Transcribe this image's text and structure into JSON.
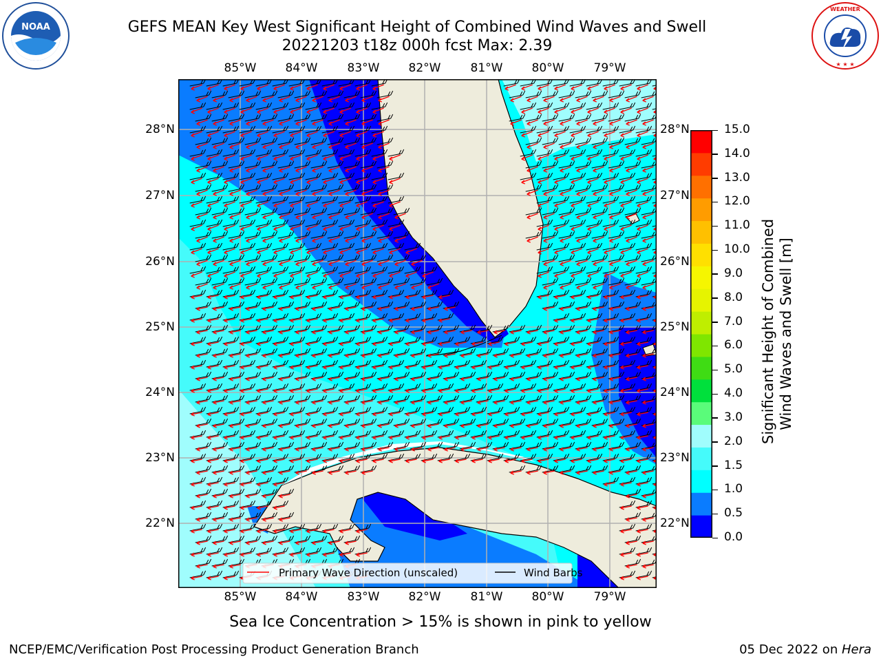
{
  "header": {
    "title_line1": "GEFS MEAN Key West Significant Height of Combined Wind Waves and Swell",
    "title_line2": "20221203 t18z 000h fcst   Max: 2.39"
  },
  "logos": {
    "left": "NOAA",
    "right": "NATIONAL WEATHER SERVICE"
  },
  "map": {
    "lon_labels": [
      "85°W",
      "84°W",
      "83°W",
      "82°W",
      "81°W",
      "80°W",
      "79°W"
    ],
    "lat_labels": [
      "28°N",
      "27°N",
      "26°N",
      "25°N",
      "24°N",
      "23°N",
      "22°N"
    ],
    "legend": {
      "wave": "Primary Wave Direction (unscaled)",
      "barb": "Wind Barbs",
      "wave_color": "#ff0000",
      "barb_color": "#000000"
    },
    "land_color": "#eeecdc",
    "ocean_bands": {
      "0.0-0.5": "#0000ff",
      "0.5-1.0": "#0a7cff",
      "1.0-1.5": "#00ffff",
      "1.5-2.0": "#45fbfb",
      "2.0-2.5": "#a0fdfd"
    }
  },
  "colorbar": {
    "label": "Significant Height of Combined\nWind Waves and Swell [m]",
    "label_line1": "Significant Height of Combined",
    "label_line2": "Wind Waves and Swell [m]",
    "ticks": [
      "15.0",
      "14.0",
      "13.0",
      "12.0",
      "11.0",
      "10.0",
      "9.0",
      "8.0",
      "7.0",
      "6.0",
      "5.0",
      "4.0",
      "3.0",
      "2.0",
      "1.5",
      "1.0",
      "0.5",
      "0.0"
    ],
    "colors": [
      "#0000ff",
      "#0a7cff",
      "#00ffff",
      "#45fbfb",
      "#a0fdfd",
      "#5afc7a",
      "#00e03c",
      "#3fdc14",
      "#7fe600",
      "#bfee00",
      "#e6f400",
      "#f6f600",
      "#ffe000",
      "#ffc000",
      "#ff9c00",
      "#ff7000",
      "#ff3c00",
      "#ff0000"
    ]
  },
  "caption": "Sea Ice Concentration > 15% is shown in pink to yellow",
  "footer": {
    "left": "NCEP/EMC/Verification Post Processing Product Generation Branch",
    "right_date": "05 Dec 2022 on ",
    "right_host": "Hera"
  }
}
